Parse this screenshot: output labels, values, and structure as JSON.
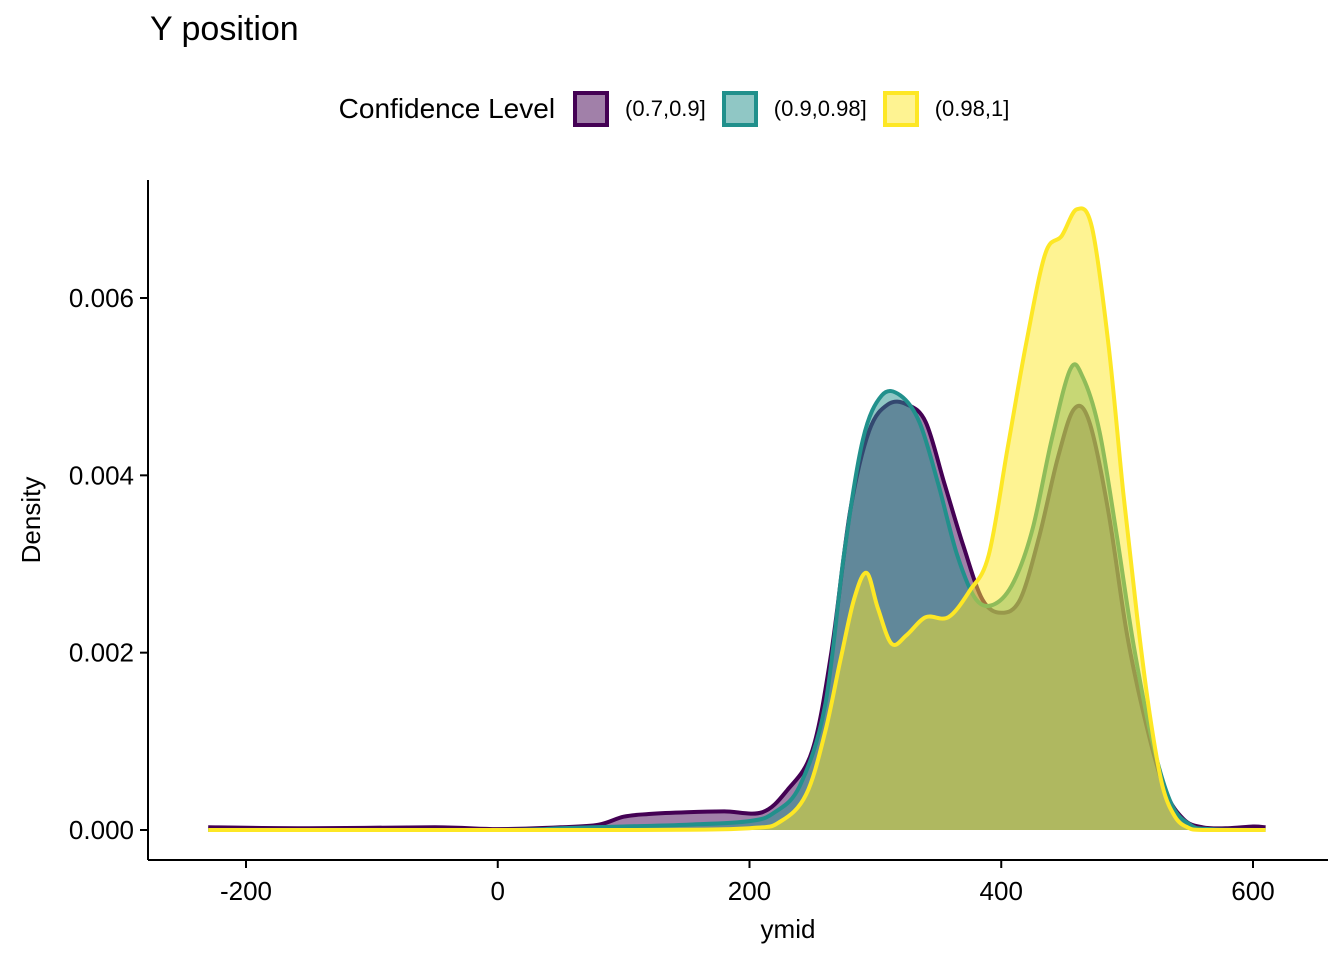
{
  "chart_data": {
    "type": "area",
    "title": "Y position",
    "xlabel": "ymid",
    "ylabel": "Density",
    "xlim": [
      -230,
      610
    ],
    "ylim": [
      0,
      0.0072
    ],
    "x_ticks": [
      -200,
      0,
      200,
      400,
      600
    ],
    "x_tick_labels": [
      "-200",
      "0",
      "200",
      "400",
      "600"
    ],
    "y_ticks": [
      0,
      0.002,
      0.004,
      0.006
    ],
    "y_tick_labels": [
      "0.000",
      "0.002",
      "0.004",
      "0.006"
    ],
    "grid": false,
    "legend": {
      "title": "Confidence Level",
      "placement": "top"
    },
    "series": [
      {
        "name": "(0.7,0.9]",
        "color": "#440154",
        "fill": "#440154",
        "points": [
          [
            -230,
            3e-05
          ],
          [
            -150,
            2e-05
          ],
          [
            -50,
            3e-05
          ],
          [
            0,
            1e-05
          ],
          [
            50,
            3e-05
          ],
          [
            80,
            6e-05
          ],
          [
            100,
            0.00015
          ],
          [
            120,
            0.00018
          ],
          [
            150,
            0.0002
          ],
          [
            180,
            0.00021
          ],
          [
            210,
            0.0002
          ],
          [
            230,
            0.00045
          ],
          [
            250,
            0.0009
          ],
          [
            265,
            0.002
          ],
          [
            280,
            0.0036
          ],
          [
            295,
            0.0045
          ],
          [
            310,
            0.0048
          ],
          [
            325,
            0.0048
          ],
          [
            340,
            0.0046
          ],
          [
            355,
            0.0039
          ],
          [
            370,
            0.0032
          ],
          [
            385,
            0.0026
          ],
          [
            400,
            0.00245
          ],
          [
            415,
            0.0026
          ],
          [
            430,
            0.0033
          ],
          [
            445,
            0.0042
          ],
          [
            458,
            0.00475
          ],
          [
            470,
            0.0046
          ],
          [
            485,
            0.0036
          ],
          [
            500,
            0.0022
          ],
          [
            515,
            0.0012
          ],
          [
            530,
            0.00045
          ],
          [
            545,
            0.00012
          ],
          [
            560,
            3e-05
          ],
          [
            580,
            2e-05
          ],
          [
            600,
            4e-05
          ],
          [
            610,
            3e-05
          ]
        ]
      },
      {
        "name": "(0.9,0.98]",
        "color": "#21908C",
        "fill": "#21908C",
        "points": [
          [
            -230,
            0.0
          ],
          [
            0,
            0.0
          ],
          [
            50,
            2e-05
          ],
          [
            100,
            4e-05
          ],
          [
            150,
            6e-05
          ],
          [
            200,
            0.0001
          ],
          [
            220,
            0.0002
          ],
          [
            240,
            0.0005
          ],
          [
            260,
            0.0014
          ],
          [
            275,
            0.0031
          ],
          [
            290,
            0.0044
          ],
          [
            305,
            0.0049
          ],
          [
            320,
            0.0049
          ],
          [
            335,
            0.0046
          ],
          [
            350,
            0.0039
          ],
          [
            365,
            0.0031
          ],
          [
            380,
            0.0026
          ],
          [
            395,
            0.00255
          ],
          [
            410,
            0.0028
          ],
          [
            425,
            0.0034
          ],
          [
            440,
            0.0044
          ],
          [
            455,
            0.0052
          ],
          [
            465,
            0.0051
          ],
          [
            478,
            0.0045
          ],
          [
            492,
            0.0033
          ],
          [
            505,
            0.0021
          ],
          [
            520,
            0.001
          ],
          [
            535,
            0.0003
          ],
          [
            550,
            6e-05
          ],
          [
            565,
            1e-05
          ],
          [
            610,
            0.0
          ]
        ]
      },
      {
        "name": "(0.98,1]",
        "color": "#FDE725",
        "fill": "#FDE725",
        "points": [
          [
            -230,
            0.0
          ],
          [
            100,
            0.0
          ],
          [
            200,
            2e-05
          ],
          [
            225,
            0.0001
          ],
          [
            245,
            0.0004
          ],
          [
            260,
            0.0011
          ],
          [
            272,
            0.0019
          ],
          [
            283,
            0.0026
          ],
          [
            293,
            0.0029
          ],
          [
            302,
            0.0025
          ],
          [
            313,
            0.0021
          ],
          [
            325,
            0.0022
          ],
          [
            340,
            0.0024
          ],
          [
            358,
            0.0024
          ],
          [
            375,
            0.0027
          ],
          [
            390,
            0.0031
          ],
          [
            405,
            0.0043
          ],
          [
            420,
            0.0055
          ],
          [
            435,
            0.0065
          ],
          [
            448,
            0.0067
          ],
          [
            460,
            0.007
          ],
          [
            472,
            0.0068
          ],
          [
            485,
            0.0055
          ],
          [
            497,
            0.0038
          ],
          [
            508,
            0.0024
          ],
          [
            518,
            0.0013
          ],
          [
            528,
            0.0005
          ],
          [
            538,
            0.00015
          ],
          [
            548,
            3e-05
          ],
          [
            560,
            0.0
          ],
          [
            610,
            0.0
          ]
        ]
      }
    ]
  }
}
